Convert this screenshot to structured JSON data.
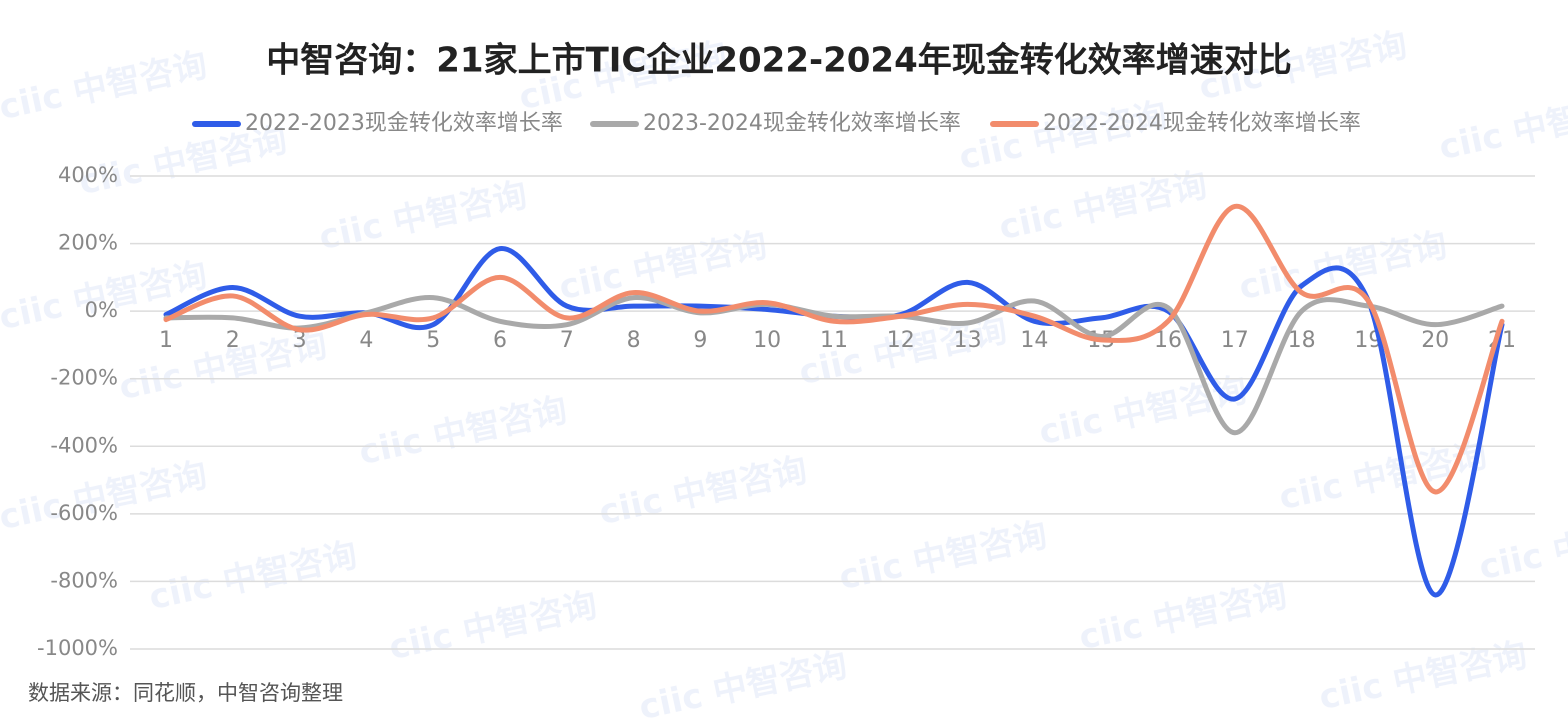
{
  "chart_data": {
    "type": "line",
    "title": "中智咨询：21家上市TIC企业2022-2024年现金转化效率增速对比",
    "source": "数据来源：同花顺，中智咨询整理",
    "watermark": "ciic 中智咨询",
    "categories": [
      "1",
      "2",
      "3",
      "4",
      "5",
      "6",
      "7",
      "8",
      "9",
      "10",
      "11",
      "12",
      "13",
      "14",
      "15",
      "16",
      "17",
      "18",
      "19",
      "20",
      "21"
    ],
    "series": [
      {
        "name": "2022-2023现金转化效率增长率",
        "color": "#2f5ce8",
        "values": [
          -10,
          70,
          -15,
          -5,
          -40,
          185,
          15,
          15,
          15,
          5,
          -15,
          -10,
          85,
          -30,
          -20,
          0,
          -260,
          75,
          30,
          -840,
          -40
        ]
      },
      {
        "name": "2023-2024现金转化效率增长率",
        "color": "#a9a9a9",
        "values": [
          -20,
          -20,
          -50,
          -5,
          40,
          -30,
          -40,
          40,
          -5,
          20,
          -15,
          -15,
          -35,
          30,
          -75,
          10,
          -360,
          0,
          15,
          -40,
          15
        ]
      },
      {
        "name": "2022-2024现金转化效率增长率",
        "color": "#f28c6c",
        "values": [
          -25,
          45,
          -55,
          -10,
          -20,
          100,
          -20,
          55,
          0,
          25,
          -30,
          -15,
          20,
          -15,
          -85,
          -30,
          310,
          55,
          30,
          -535,
          -30
        ]
      }
    ],
    "ylim": [
      -1000,
      400
    ],
    "yticks": [
      {
        "value": 400,
        "label": "400%"
      },
      {
        "value": 200,
        "label": "200%"
      },
      {
        "value": 0,
        "label": "0%"
      },
      {
        "value": -200,
        "label": "-200%"
      },
      {
        "value": -400,
        "label": "-400%"
      },
      {
        "value": -600,
        "label": "-600%"
      },
      {
        "value": -800,
        "label": "-800%"
      },
      {
        "value": -1000,
        "label": "-1000%"
      }
    ],
    "grid": true
  }
}
